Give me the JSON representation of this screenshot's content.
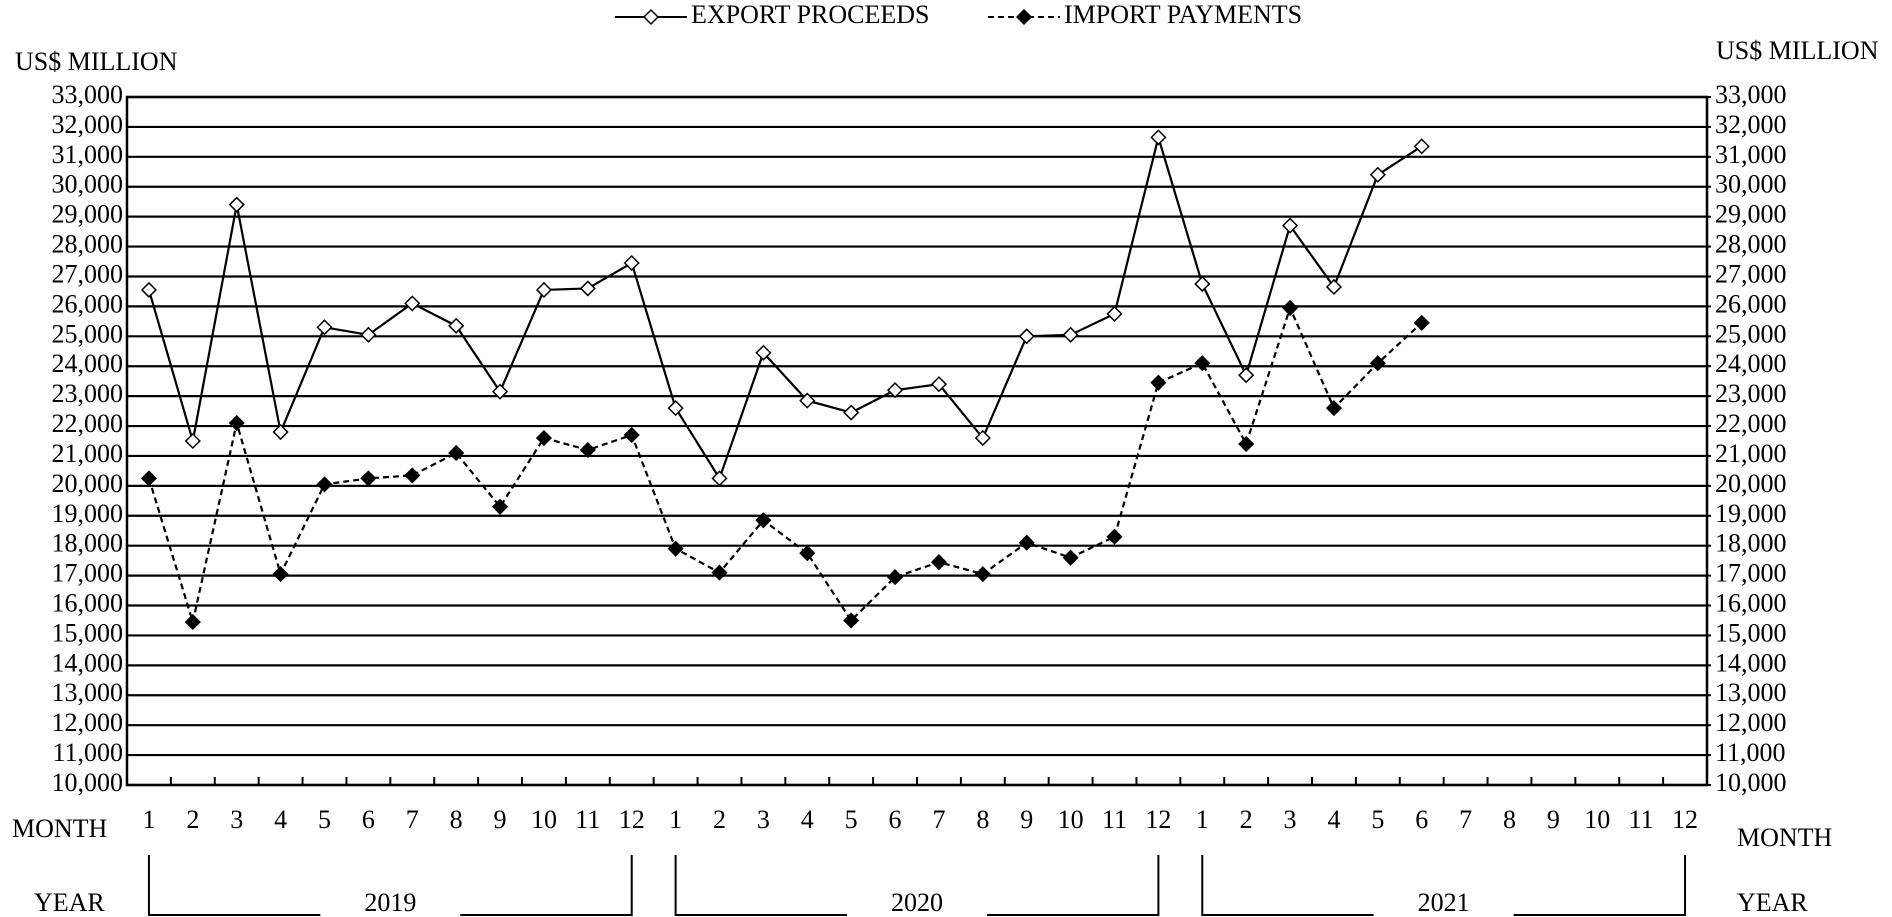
{
  "chart_data": {
    "type": "line",
    "y_axis_label": "US$ MILLION",
    "y2_axis_label": "US$ MILLION",
    "x_axis_label": "MONTH",
    "x2_axis_label": "MONTH",
    "group_label": "YEAR",
    "group_label_right": "YEAR",
    "groups": [
      "2019",
      "2020",
      "2021"
    ],
    "categories": [
      "1",
      "2",
      "3",
      "4",
      "5",
      "6",
      "7",
      "8",
      "9",
      "10",
      "11",
      "12",
      "1",
      "2",
      "3",
      "4",
      "5",
      "6",
      "7",
      "8",
      "9",
      "10",
      "11",
      "12",
      "1",
      "2",
      "3",
      "4",
      "5",
      "6",
      "7",
      "8",
      "9",
      "10",
      "11",
      "12"
    ],
    "series": [
      {
        "name": "EXPORT PROCEEDS",
        "color": "#000000",
        "line_style": "solid",
        "marker": "open-diamond",
        "values": [
          26550,
          21500,
          29400,
          21800,
          25300,
          25050,
          26100,
          25350,
          23150,
          26550,
          26600,
          27450,
          22600,
          20250,
          24450,
          22850,
          22450,
          23200,
          23400,
          21600,
          25000,
          25050,
          25750,
          31650,
          26750,
          23700,
          28700,
          26650,
          30400,
          31350,
          null,
          null,
          null,
          null,
          null,
          null
        ]
      },
      {
        "name": "IMPORT PAYMENTS",
        "color": "#000000",
        "line_style": "dashed",
        "marker": "filled-diamond",
        "values": [
          20250,
          15450,
          22100,
          17050,
          20050,
          20250,
          20350,
          21100,
          19300,
          21600,
          21200,
          21700,
          17900,
          17100,
          18850,
          17750,
          15500,
          16950,
          17450,
          17050,
          18100,
          17600,
          18300,
          23450,
          24100,
          21400,
          25950,
          22600,
          24100,
          25450,
          null,
          null,
          null,
          null,
          null,
          null
        ]
      }
    ],
    "ylim": [
      10000,
      33000
    ],
    "yticks": [
      {
        "value": 10000,
        "label": "10,000"
      },
      {
        "value": 11000,
        "label": "11,000"
      },
      {
        "value": 12000,
        "label": "12,000"
      },
      {
        "value": 13000,
        "label": "13,000"
      },
      {
        "value": 14000,
        "label": "14,000"
      },
      {
        "value": 15000,
        "label": "15,000"
      },
      {
        "value": 16000,
        "label": "16,000"
      },
      {
        "value": 17000,
        "label": "17,000"
      },
      {
        "value": 18000,
        "label": "18,000"
      },
      {
        "value": 19000,
        "label": "19,000"
      },
      {
        "value": 20000,
        "label": "20,000"
      },
      {
        "value": 21000,
        "label": "21,000"
      },
      {
        "value": 22000,
        "label": "22,000"
      },
      {
        "value": 23000,
        "label": "23,000"
      },
      {
        "value": 24000,
        "label": "24,000"
      },
      {
        "value": 25000,
        "label": "25,000"
      },
      {
        "value": 26000,
        "label": "26,000"
      },
      {
        "value": 27000,
        "label": "27,000"
      },
      {
        "value": 28000,
        "label": "28,000"
      },
      {
        "value": 29000,
        "label": "29,000"
      },
      {
        "value": 30000,
        "label": "30,000"
      },
      {
        "value": 31000,
        "label": "31,000"
      },
      {
        "value": 32000,
        "label": "32,000"
      },
      {
        "value": 33000,
        "label": "33,000"
      }
    ],
    "y2lim": [
      10000,
      33000
    ],
    "y2ticks": [
      {
        "value": 10000,
        "label": "10,000"
      },
      {
        "value": 11000,
        "label": "11,000"
      },
      {
        "value": 12000,
        "label": "12,000"
      },
      {
        "value": 13000,
        "label": "13,000"
      },
      {
        "value": 14000,
        "label": "14,000"
      },
      {
        "value": 15000,
        "label": "15,000"
      },
      {
        "value": 16000,
        "label": "16,000"
      },
      {
        "value": 17000,
        "label": "17,000"
      },
      {
        "value": 18000,
        "label": "18,000"
      },
      {
        "value": 19000,
        "label": "19,000"
      },
      {
        "value": 20000,
        "label": "20,000"
      },
      {
        "value": 21000,
        "label": "21,000"
      },
      {
        "value": 22000,
        "label": "22,000"
      },
      {
        "value": 23000,
        "label": "23,000"
      },
      {
        "value": 24000,
        "label": "24,000"
      },
      {
        "value": 25000,
        "label": "25,000"
      },
      {
        "value": 26000,
        "label": "26,000"
      },
      {
        "value": 27000,
        "label": "27,000"
      },
      {
        "value": 28000,
        "label": "28,000"
      },
      {
        "value": 29000,
        "label": "29,000"
      },
      {
        "value": 30000,
        "label": "30,000"
      },
      {
        "value": 31000,
        "label": "31,000"
      },
      {
        "value": 32000,
        "label": "32,000"
      },
      {
        "value": 33000,
        "label": "33,000"
      }
    ],
    "grid": true,
    "legend": "top"
  }
}
